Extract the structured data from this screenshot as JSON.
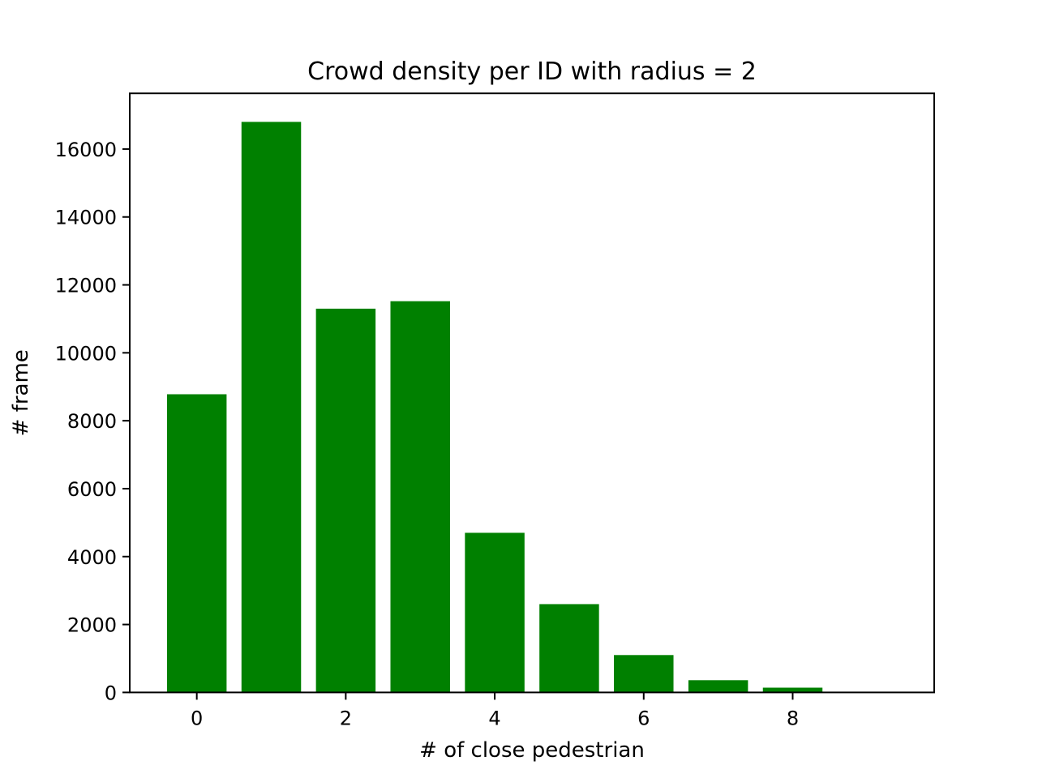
{
  "chart_data": {
    "type": "bar",
    "title": "Crowd density per ID with radius = 2",
    "xlabel": "# of close pedestrian",
    "ylabel": "# frame",
    "x": [
      0,
      1,
      2,
      3,
      4,
      5,
      6,
      7,
      8,
      9
    ],
    "values": [
      8780,
      16800,
      11300,
      11520,
      4700,
      2600,
      1100,
      360,
      140,
      0
    ],
    "xlim": [
      -0.9,
      9.9
    ],
    "ylim": [
      0,
      17640
    ],
    "x_ticks": [
      0,
      2,
      4,
      6,
      8
    ],
    "y_ticks": [
      0,
      2000,
      4000,
      6000,
      8000,
      10000,
      12000,
      14000,
      16000
    ],
    "bar_color": "#008000",
    "grid": false,
    "legend": "none"
  }
}
